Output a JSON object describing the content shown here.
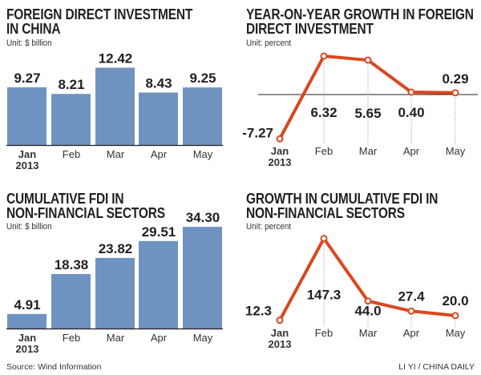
{
  "chart_data": [
    {
      "type": "bar",
      "title": "FOREIGN DIRECT INVESTMENT IN CHINA",
      "unit": "Unit: $ billion",
      "categories": [
        "Jan",
        "Feb",
        "Mar",
        "Apr",
        "May"
      ],
      "first_category_year": "2013",
      "values": [
        9.27,
        8.21,
        12.42,
        8.43,
        9.25
      ],
      "value_labels": [
        "9.27",
        "8.21",
        "12.42",
        "8.43",
        "9.25"
      ],
      "color": "#6f93c1"
    },
    {
      "type": "line",
      "title": "YEAR-ON-YEAR GROWTH IN FOREIGN DIRECT INVESTMENT",
      "unit": "Unit: percent",
      "categories": [
        "Jan",
        "Feb",
        "Mar",
        "Apr",
        "May"
      ],
      "first_category_year": "2013",
      "values": [
        -7.27,
        6.32,
        5.65,
        0.4,
        0.29
      ],
      "value_labels": [
        "-7.27",
        "6.32",
        "5.65",
        "0.40",
        "0.29"
      ],
      "zero_line": true,
      "color": "#d9471f"
    },
    {
      "type": "bar",
      "title": "CUMULATIVE FDI IN NON-FINANCIAL SECTORS",
      "unit": "Unit: $ billion",
      "categories": [
        "Jan",
        "Feb",
        "Mar",
        "Apr",
        "May"
      ],
      "first_category_year": "2013",
      "values": [
        4.91,
        18.38,
        23.82,
        29.51,
        34.3
      ],
      "value_labels": [
        "4.91",
        "18.38",
        "23.82",
        "29.51",
        "34.30"
      ],
      "color": "#6f93c1"
    },
    {
      "type": "line",
      "title": "GROWTH IN CUMULATIVE FDI IN NON-FINANCIAL SECTORS",
      "unit": "Unit: percent",
      "categories": [
        "Jan",
        "Feb",
        "Mar",
        "Apr",
        "May"
      ],
      "first_category_year": "2013",
      "values": [
        12.3,
        147.3,
        44.0,
        27.4,
        20.0
      ],
      "value_labels": [
        "12.3",
        "147.3",
        "44.0",
        "27.4",
        "20.0"
      ],
      "zero_line": false,
      "color": "#d9471f"
    }
  ],
  "titles": {
    "c1": [
      "FOREIGN DIRECT INVESTMENT",
      "IN CHINA"
    ],
    "c2": [
      "YEAR-ON-YEAR GROWTH IN FOREIGN",
      "DIRECT INVESTMENT"
    ],
    "c3": [
      "CUMULATIVE FDI IN",
      "NON-FINANCIAL SECTORS"
    ],
    "c4": [
      "GROWTH IN CUMULATIVE FDI IN",
      "NON-FINANCIAL SECTORS"
    ]
  },
  "footer": {
    "source": "Source: Wind Information",
    "credit": "LI YI / CHINA DAILY"
  }
}
